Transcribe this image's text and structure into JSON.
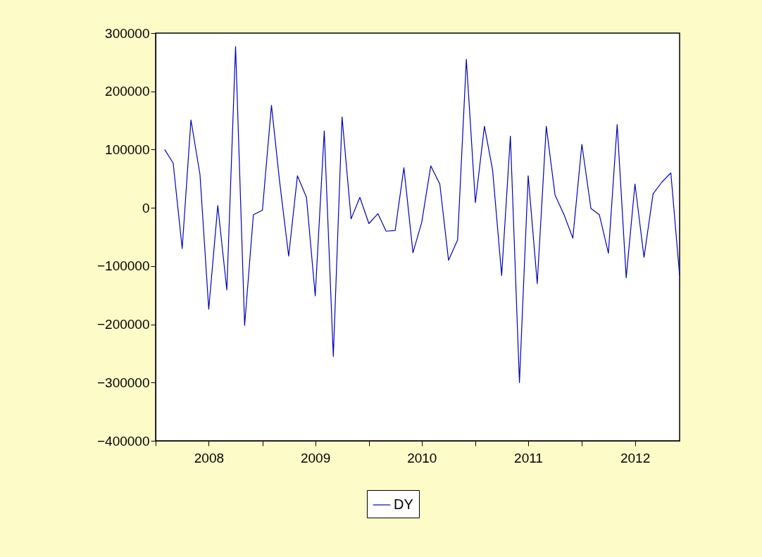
{
  "chart_data": {
    "type": "line",
    "x": [
      "2008-02",
      "2008-03",
      "2008-04",
      "2008-05",
      "2008-06",
      "2008-07",
      "2008-08",
      "2008-09",
      "2008-10",
      "2008-11",
      "2008-12",
      "2009-01",
      "2009-02",
      "2009-03",
      "2009-04",
      "2009-05",
      "2009-06",
      "2009-07",
      "2009-08",
      "2009-09",
      "2009-10",
      "2009-11",
      "2009-12",
      "2010-01",
      "2010-02",
      "2010-03",
      "2010-04",
      "2010-05",
      "2010-06",
      "2010-07",
      "2010-08",
      "2010-09",
      "2010-10",
      "2010-11",
      "2010-12",
      "2011-01",
      "2011-02",
      "2011-03",
      "2011-04",
      "2011-05",
      "2011-06",
      "2011-07",
      "2011-08",
      "2011-09",
      "2011-10",
      "2011-11",
      "2011-12",
      "2012-01",
      "2012-02",
      "2012-03",
      "2012-04",
      "2012-05",
      "2012-06",
      "2012-07",
      "2012-08",
      "2012-09",
      "2012-10",
      "2012-11",
      "2012-12"
    ],
    "series": [
      {
        "name": "DY",
        "color": "#0000c0",
        "values": [
          100000,
          77000,
          -70000,
          151000,
          57000,
          -174000,
          4000,
          -141000,
          277000,
          -202000,
          -12000,
          -4000,
          176000,
          45000,
          -83000,
          55000,
          18000,
          -151000,
          132000,
          -255000,
          156000,
          -19000,
          18000,
          -27000,
          -10000,
          -40000,
          -39000,
          69000,
          -77000,
          -25000,
          72000,
          41000,
          -90000,
          -55000,
          255000,
          9000,
          140000,
          65000,
          -116000,
          123000,
          -300000,
          55000,
          -130000,
          140000,
          22000,
          -12000,
          -52000,
          109000,
          -1000,
          -12000,
          -78000,
          143000,
          -120000,
          41000,
          -85000,
          24000,
          44000,
          60000,
          -116000
        ]
      }
    ],
    "xlim": [
      "2008-01",
      "2012-12"
    ],
    "xticks": [
      {
        "value": "2008-01",
        "label": null
      },
      {
        "value": "2008-07",
        "label": "2008"
      },
      {
        "value": "2009-01",
        "label": null
      },
      {
        "value": "2009-07",
        "label": "2009"
      },
      {
        "value": "2010-01",
        "label": null
      },
      {
        "value": "2010-07",
        "label": "2010"
      },
      {
        "value": "2011-01",
        "label": null
      },
      {
        "value": "2011-07",
        "label": "2011"
      },
      {
        "value": "2012-01",
        "label": null
      },
      {
        "value": "2012-07",
        "label": "2012"
      }
    ],
    "ylim": [
      -400000,
      300000
    ],
    "yticks": [
      -400000,
      -300000,
      -200000,
      -100000,
      0,
      100000,
      200000,
      300000
    ],
    "legend": "bottom"
  }
}
